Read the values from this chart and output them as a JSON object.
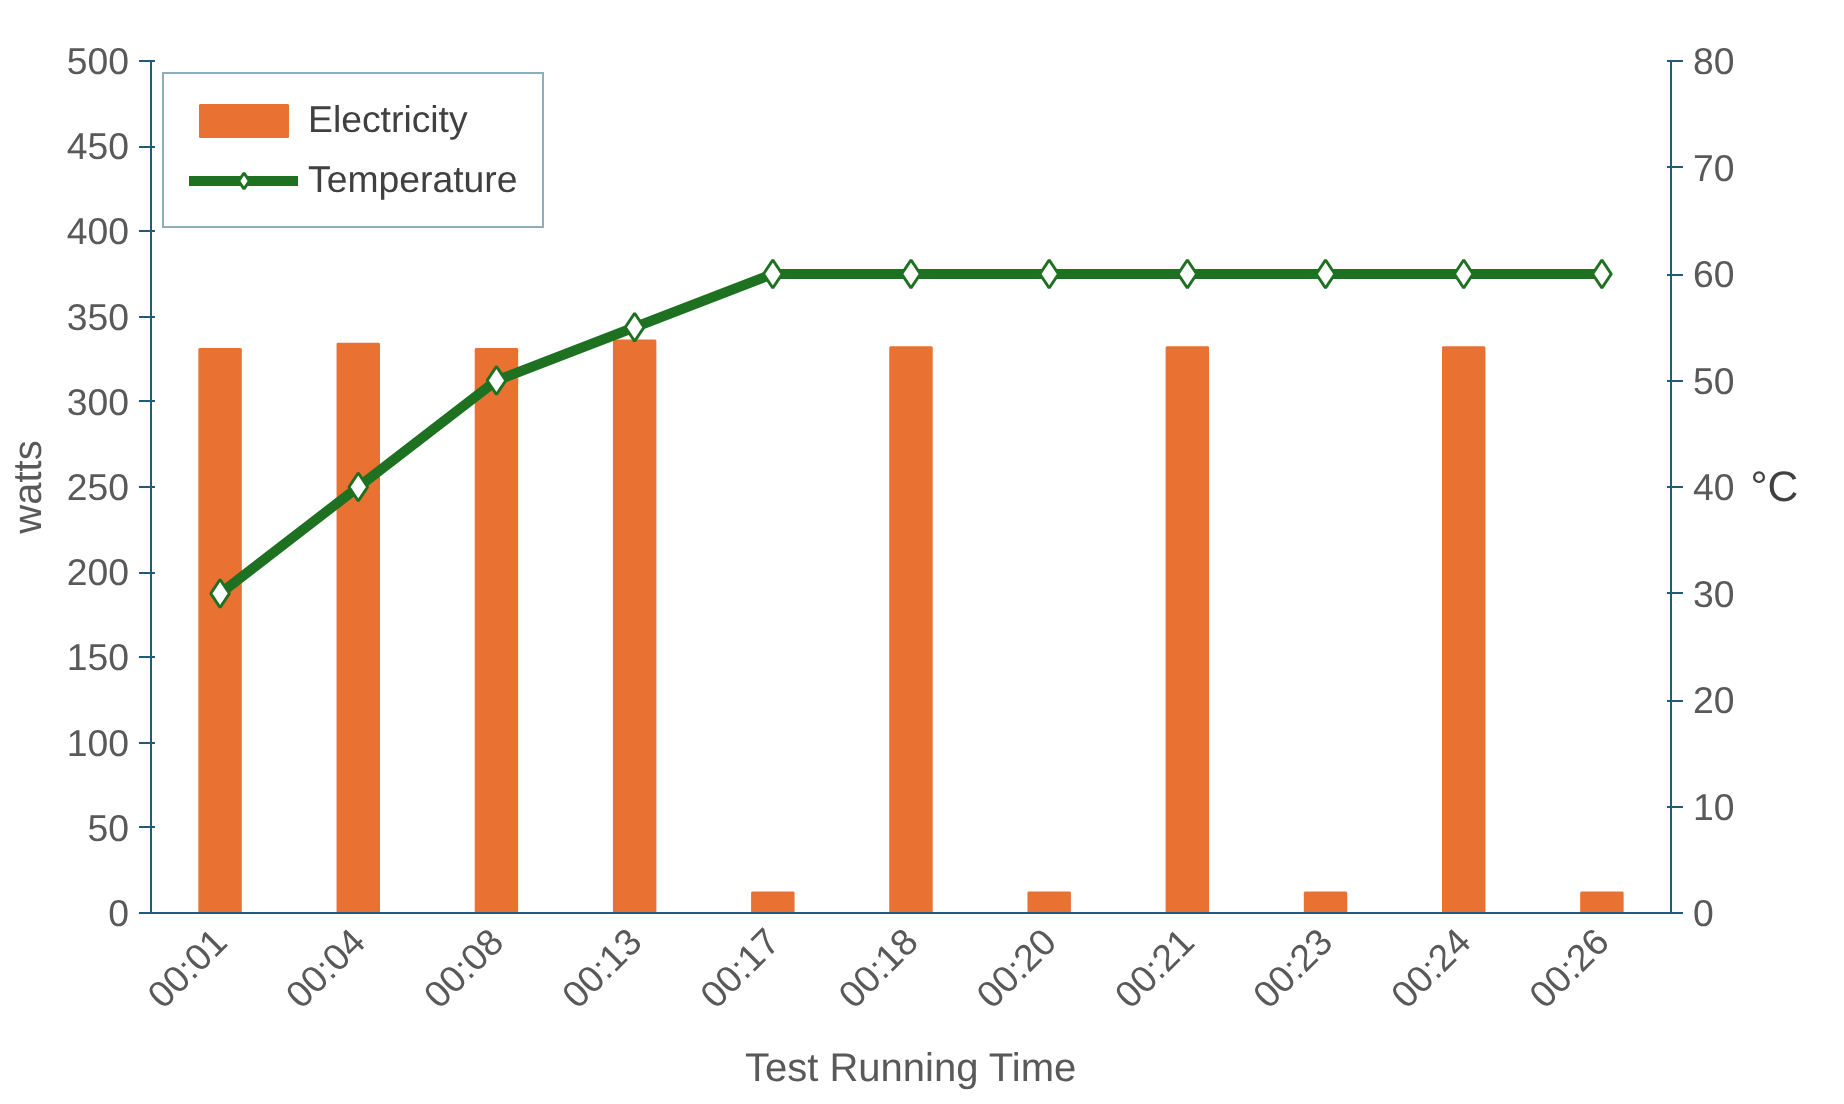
{
  "chart_data": {
    "type": "bar",
    "xlabel": "Test Running Time",
    "ylabel": "watts",
    "y2label": "°C",
    "categories": [
      "00:01",
      "00:04",
      "00:08",
      "00:13",
      "00:17",
      "00:18",
      "00:20",
      "00:21",
      "00:23",
      "00:24",
      "00:26"
    ],
    "series": [
      {
        "name": "Electricity",
        "color": "#e97132",
        "values": [
          331,
          334,
          331,
          336,
          12,
          332,
          12,
          332,
          12,
          332,
          12
        ]
      },
      {
        "name": "Temperature",
        "type": "line",
        "axis": "y2",
        "color": "#1e7121",
        "marker": "diamond",
        "values": [
          30,
          40,
          50,
          55,
          60,
          60,
          60,
          60,
          60,
          60,
          60
        ]
      }
    ],
    "ylim": [
      0,
      500
    ],
    "yticks": [
      0,
      50,
      100,
      150,
      200,
      250,
      300,
      350,
      400,
      450,
      500
    ],
    "y2lim": [
      0,
      80
    ],
    "y2ticks": [
      0,
      10,
      20,
      30,
      40,
      50,
      60,
      70,
      80
    ],
    "grid": false,
    "legend": "top left"
  }
}
